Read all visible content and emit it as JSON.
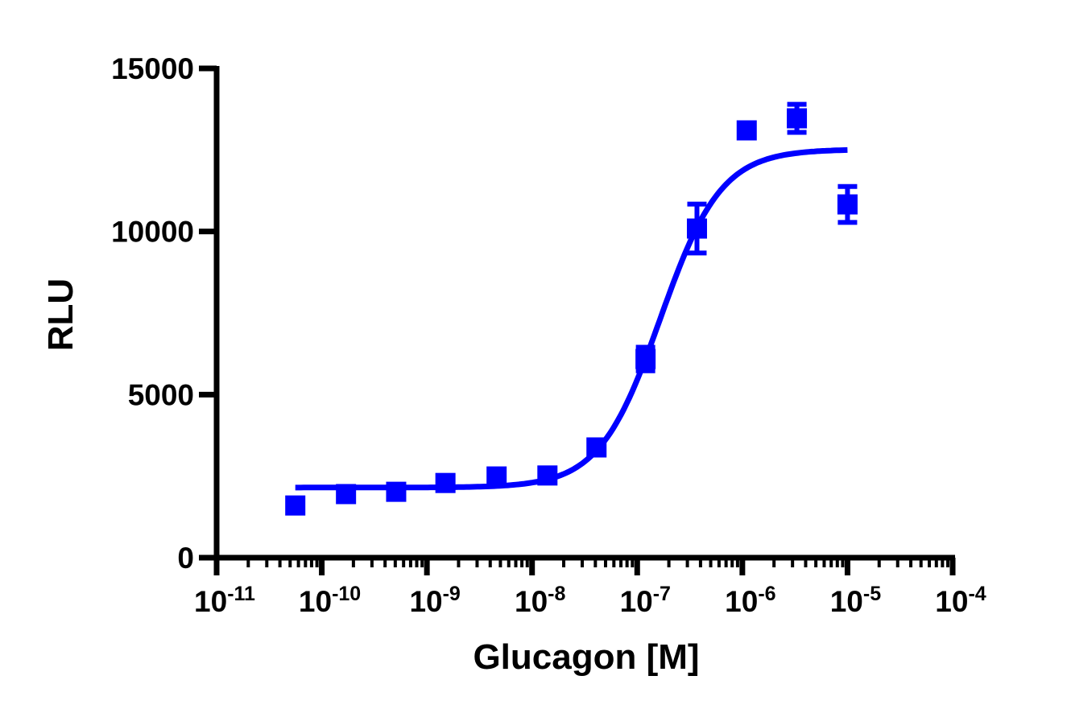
{
  "chart_data": {
    "type": "scatter",
    "title": "",
    "xlabel": "Glucagon [M]",
    "ylabel": "RLU",
    "x_scale": "log",
    "xlim": [
      1e-11,
      0.0001
    ],
    "ylim": [
      0,
      15000
    ],
    "grid": false,
    "x_ticks": [
      {
        "base": "10",
        "exp": "-11"
      },
      {
        "base": "10",
        "exp": "-10"
      },
      {
        "base": "10",
        "exp": "-9"
      },
      {
        "base": "10",
        "exp": "-8"
      },
      {
        "base": "10",
        "exp": "-7"
      },
      {
        "base": "10",
        "exp": "-6"
      },
      {
        "base": "10",
        "exp": "-5"
      },
      {
        "base": "10",
        "exp": "-4"
      }
    ],
    "y_ticks": [
      "0",
      "5000",
      "10000",
      "15000"
    ],
    "y_tick_values": [
      0,
      5000,
      10000,
      15000
    ],
    "color": "#0000ff",
    "marker": "square",
    "points": [
      {
        "x": 5.6e-11,
        "y": 1600,
        "err": 0
      },
      {
        "x": 1.7e-10,
        "y": 1950,
        "err": 0
      },
      {
        "x": 5.1e-10,
        "y": 2020,
        "err": 0
      },
      {
        "x": 1.5e-09,
        "y": 2290,
        "err": 80
      },
      {
        "x": 4.6e-09,
        "y": 2490,
        "err": 120
      },
      {
        "x": 1.4e-08,
        "y": 2520,
        "err": 60
      },
      {
        "x": 4.1e-08,
        "y": 3380,
        "err": 60
      },
      {
        "x": 1.2e-07,
        "y": 6090,
        "err": 360
      },
      {
        "x": 3.7e-07,
        "y": 10090,
        "err": 750
      },
      {
        "x": 1.1e-06,
        "y": 13100,
        "err": 0
      },
      {
        "x": 3.3e-06,
        "y": 13470,
        "err": 430
      },
      {
        "x": 1e-05,
        "y": 10830,
        "err": 550
      }
    ],
    "fit": {
      "model": "four-parameter logistic",
      "bottom": 2150,
      "top": 12520,
      "ec50": 1.66e-07,
      "hill": 1.5,
      "x_range": [
        5.6e-11,
        1e-05
      ]
    }
  }
}
